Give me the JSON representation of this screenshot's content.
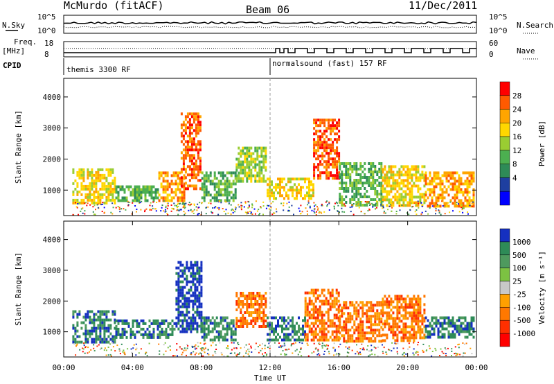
{
  "header": {
    "station": "McMurdo (fitACF)",
    "beam": "Beam 06",
    "date": "11/Dec/2011"
  },
  "noise_panel": {
    "left_label": "N.Sky",
    "right_label": "N.Search",
    "left_ticks": [
      "10^5",
      "10^0"
    ],
    "right_ticks": [
      "10^5",
      "10^0"
    ]
  },
  "freq_panel": {
    "left_label_1": "Freq.",
    "left_label_2": "[MHz]",
    "left_ticks": [
      "18",
      "8"
    ],
    "right_label": "Nave",
    "right_ticks": [
      "60",
      "0"
    ]
  },
  "cpid_panel": {
    "label": "CPID",
    "segments": [
      "themis 3300 RF",
      "normalsound (fast) 157 RF"
    ]
  },
  "chart_data": [
    {
      "type": "heatmap",
      "name": "power",
      "ylabel": "Slant Range [km]",
      "yticks": [
        "1000",
        "2000",
        "3000",
        "4000"
      ],
      "ylim": [
        180,
        4600
      ],
      "colorbar": {
        "label": "Power [dB]",
        "ticks": [
          "28",
          "24",
          "20",
          "16",
          "12",
          "8",
          "4"
        ],
        "colors": [
          "#ff0000",
          "#ff5a00",
          "#ffa500",
          "#ffd700",
          "#9acd32",
          "#4caf50",
          "#2e8b57",
          "#1e3fa0",
          "#0000ff"
        ]
      },
      "bands": [
        {
          "t0": 0.5,
          "t1": 3.0,
          "r0": 550,
          "r1": 1700,
          "level": 3
        },
        {
          "t0": 3.0,
          "t1": 5.5,
          "r0": 650,
          "r1": 1150,
          "level": 5
        },
        {
          "t0": 5.5,
          "t1": 7.0,
          "r0": 700,
          "r1": 1600,
          "level": 2
        },
        {
          "t0": 6.8,
          "t1": 8.0,
          "r0": 1000,
          "r1": 3500,
          "level": 1
        },
        {
          "t0": 8.0,
          "t1": 10.0,
          "r0": 700,
          "r1": 1600,
          "level": 5
        },
        {
          "t0": 10.0,
          "t1": 11.8,
          "r0": 1300,
          "r1": 2400,
          "level": 4
        },
        {
          "t0": 11.8,
          "t1": 14.5,
          "r0": 700,
          "r1": 1400,
          "level": 3
        },
        {
          "t0": 14.5,
          "t1": 16.0,
          "r0": 1400,
          "r1": 3300,
          "level": 1
        },
        {
          "t0": 16.0,
          "t1": 18.5,
          "r0": 500,
          "r1": 1900,
          "level": 5
        },
        {
          "t0": 18.5,
          "t1": 21.0,
          "r0": 500,
          "r1": 1800,
          "level": 3
        },
        {
          "t0": 21.0,
          "t1": 23.8,
          "r0": 500,
          "r1": 1600,
          "level": 2
        }
      ]
    },
    {
      "type": "heatmap",
      "name": "velocity",
      "ylabel": "Slant Range [km]",
      "yticks": [
        "1000",
        "2000",
        "3000",
        "4000"
      ],
      "ylim": [
        180,
        4600
      ],
      "colorbar": {
        "label": "Velocity [m s⁻¹]",
        "ticks": [
          "1000",
          "500",
          "100",
          "25",
          "-25",
          "-100",
          "-500",
          "-1000"
        ],
        "colors": [
          "#1530c0",
          "#2e8b57",
          "#4e9a5e",
          "#7cc242",
          "#c8c8c8",
          "#ffa000",
          "#ff7800",
          "#ff3000",
          "#ff0000"
        ]
      },
      "bands": [
        {
          "t0": 0.5,
          "t1": 3.0,
          "r0": 700,
          "r1": 1700,
          "level": 1
        },
        {
          "t0": 3.0,
          "t1": 6.5,
          "r0": 800,
          "r1": 1400,
          "level": 1
        },
        {
          "t0": 6.5,
          "t1": 8.0,
          "r0": 1000,
          "r1": 3300,
          "level": 0
        },
        {
          "t0": 8.0,
          "t1": 10.0,
          "r0": 700,
          "r1": 1500,
          "level": 1
        },
        {
          "t0": 10.0,
          "t1": 11.8,
          "r0": 1200,
          "r1": 2300,
          "level": 6
        },
        {
          "t0": 11.8,
          "t1": 14.0,
          "r0": 700,
          "r1": 1500,
          "level": 1
        },
        {
          "t0": 14.0,
          "t1": 16.0,
          "r0": 700,
          "r1": 2400,
          "level": 6
        },
        {
          "t0": 16.0,
          "t1": 18.5,
          "r0": 700,
          "r1": 2000,
          "level": 6
        },
        {
          "t0": 18.5,
          "t1": 21.0,
          "r0": 700,
          "r1": 2200,
          "level": 6
        },
        {
          "t0": 21.0,
          "t1": 23.8,
          "r0": 800,
          "r1": 1500,
          "level": 1
        }
      ]
    }
  ],
  "time_axis": {
    "label": "Time UT",
    "ticks": [
      "00:00",
      "04:00",
      "08:00",
      "12:00",
      "16:00",
      "20:00",
      "00:00"
    ],
    "range_hours": [
      0,
      24
    ]
  }
}
